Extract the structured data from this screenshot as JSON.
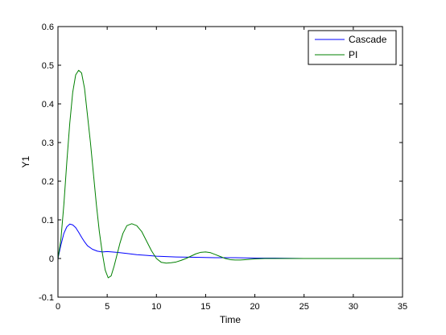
{
  "chart_data": {
    "type": "line",
    "title": "",
    "xlabel": "Time",
    "ylabel": "Y1",
    "xlim": [
      0,
      35
    ],
    "ylim": [
      -0.1,
      0.6
    ],
    "xticks": [
      0,
      5,
      10,
      15,
      20,
      25,
      30,
      35
    ],
    "xtick_labels": [
      "0",
      "5",
      "10",
      "15",
      "20",
      "25",
      "30",
      "35"
    ],
    "yticks": [
      -0.1,
      0,
      0.1,
      0.2,
      0.3,
      0.4,
      0.5,
      0.6
    ],
    "ytick_labels": [
      "-0.1",
      "0",
      "0.1",
      "0.2",
      "0.3",
      "0.4",
      "0.5",
      "0.6"
    ],
    "grid": false,
    "legend_position": "top-right",
    "series": [
      {
        "name": "Cascade",
        "color": "#0000ff",
        "x": [
          0,
          0.3,
          0.6,
          0.9,
          1.2,
          1.5,
          1.8,
          2.1,
          2.4,
          2.7,
          3.0,
          3.5,
          4.0,
          4.5,
          5.0,
          5.5,
          6.0,
          7.0,
          8.0,
          9.0,
          10.0,
          11.0,
          12.0,
          14.0,
          16.0,
          18.0,
          20.0,
          22.0,
          25.0,
          30.0,
          35.0
        ],
        "y": [
          0,
          0.035,
          0.065,
          0.082,
          0.089,
          0.087,
          0.08,
          0.068,
          0.055,
          0.043,
          0.033,
          0.024,
          0.019,
          0.017,
          0.018,
          0.017,
          0.016,
          0.013,
          0.01,
          0.008,
          0.006,
          0.005,
          0.004,
          0.003,
          0.002,
          0.002,
          0.001,
          0.001,
          0.0,
          0.0,
          0.0
        ]
      },
      {
        "name": "PI",
        "color": "#008000",
        "x": [
          0,
          0.3,
          0.6,
          0.9,
          1.2,
          1.5,
          1.8,
          2.1,
          2.4,
          2.7,
          3.0,
          3.3,
          3.6,
          3.9,
          4.2,
          4.5,
          4.8,
          5.1,
          5.4,
          5.7,
          6.0,
          6.3,
          6.6,
          7.0,
          7.5,
          8.0,
          8.5,
          9.0,
          9.5,
          10.0,
          10.5,
          11.0,
          11.5,
          12.0,
          12.5,
          13.0,
          13.5,
          14.0,
          14.5,
          15.0,
          15.5,
          16.0,
          16.5,
          17.0,
          17.5,
          18.0,
          18.5,
          19.0,
          20.0,
          21.0,
          22.0,
          25.0,
          30.0,
          35.0
        ],
        "y": [
          0,
          0.05,
          0.14,
          0.25,
          0.35,
          0.43,
          0.475,
          0.487,
          0.48,
          0.44,
          0.37,
          0.3,
          0.22,
          0.14,
          0.07,
          0.015,
          -0.03,
          -0.05,
          -0.045,
          -0.02,
          0.01,
          0.04,
          0.065,
          0.085,
          0.09,
          0.085,
          0.07,
          0.045,
          0.02,
          0.0,
          -0.01,
          -0.012,
          -0.011,
          -0.009,
          -0.005,
          0.0,
          0.006,
          0.012,
          0.016,
          0.017,
          0.015,
          0.01,
          0.005,
          0.0,
          -0.003,
          -0.004,
          -0.004,
          -0.003,
          -0.001,
          0.0,
          0.0,
          0.0,
          0.0,
          0.0
        ]
      }
    ]
  }
}
